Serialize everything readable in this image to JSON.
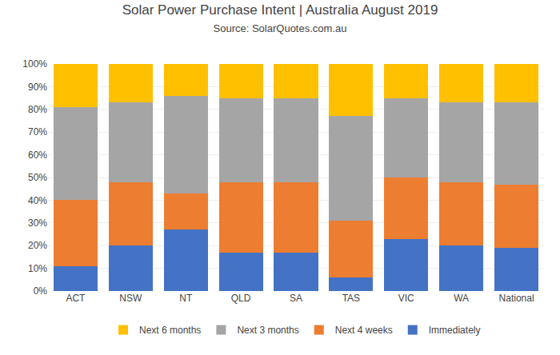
{
  "chart_data": {
    "type": "bar",
    "stacked": true,
    "title": "Solar Power Purchase Intent | Australia August 2019",
    "subtitle": "Source: SolarQuotes.com.au",
    "categories": [
      "ACT",
      "NSW",
      "NT",
      "QLD",
      "SA",
      "TAS",
      "VIC",
      "WA",
      "National"
    ],
    "series": [
      {
        "name": "Immediately",
        "color": "#4472c4",
        "values": [
          11,
          20,
          27,
          17,
          17,
          6,
          23,
          20,
          19
        ]
      },
      {
        "name": "Next 4 weeks",
        "color": "#ed7d31",
        "values": [
          29,
          28,
          16,
          31,
          31,
          25,
          27,
          28,
          28
        ]
      },
      {
        "name": "Next 3 months",
        "color": "#a5a5a5",
        "values": [
          41,
          35,
          43,
          37,
          37,
          46,
          35,
          35,
          36
        ]
      },
      {
        "name": "Next 6 months",
        "color": "#ffc000",
        "values": [
          19,
          17,
          14,
          15,
          15,
          23,
          15,
          17,
          17
        ]
      }
    ],
    "ylim": [
      0,
      100
    ],
    "yticks": [
      {
        "value": 0,
        "label": "0%"
      },
      {
        "value": 10,
        "label": "10%"
      },
      {
        "value": 20,
        "label": "20%"
      },
      {
        "value": 30,
        "label": "30%"
      },
      {
        "value": 40,
        "label": "40%"
      },
      {
        "value": 50,
        "label": "50%"
      },
      {
        "value": 60,
        "label": "60%"
      },
      {
        "value": 70,
        "label": "70%"
      },
      {
        "value": 80,
        "label": "80%"
      },
      {
        "value": 90,
        "label": "90%"
      },
      {
        "value": 100,
        "label": "100%"
      }
    ],
    "grid": true,
    "legend": "bottom"
  }
}
